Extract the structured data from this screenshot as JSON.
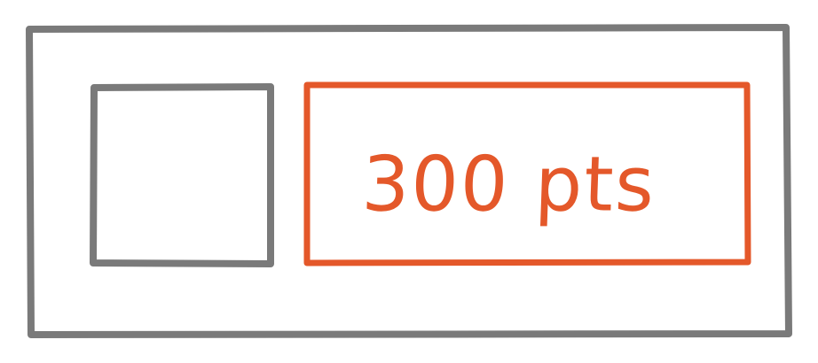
{
  "sketch": {
    "points_label": "300 pts",
    "colors": {
      "outline": "#7a7a7a",
      "accent": "#e4582a",
      "background": "#ffffff"
    }
  }
}
